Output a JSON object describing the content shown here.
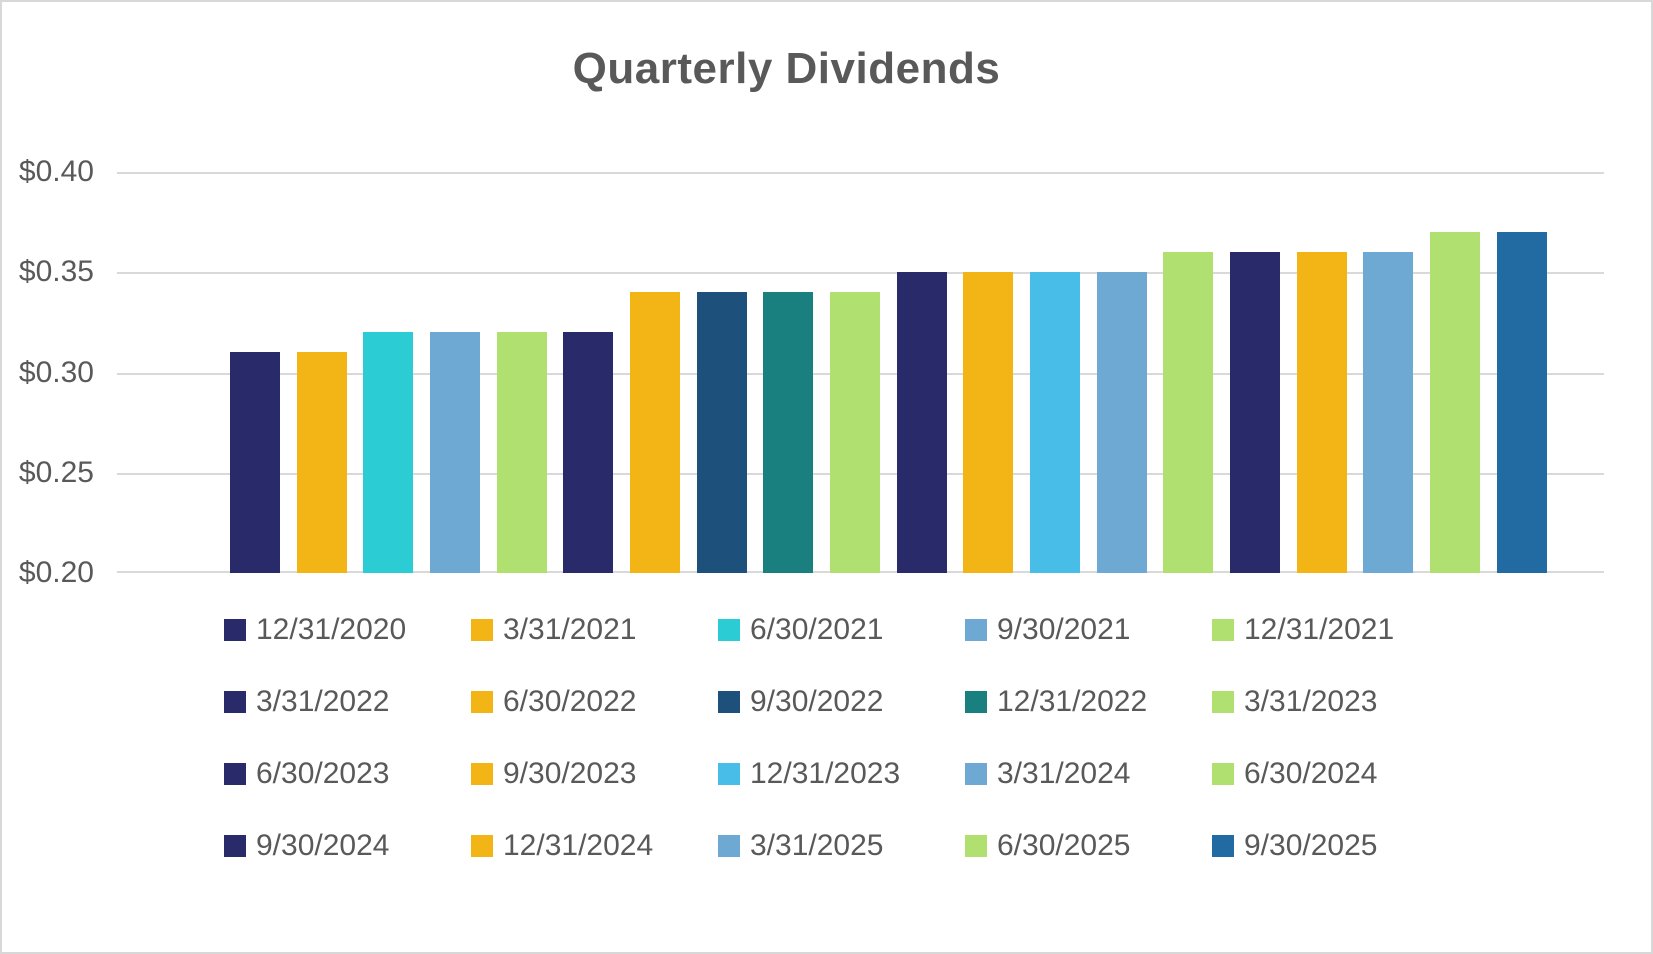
{
  "chart_data": {
    "type": "bar",
    "title": "Quarterly Dividends",
    "xlabel": "",
    "ylabel": "",
    "ylim": [
      0.2,
      0.4
    ],
    "yticks": [
      0.4,
      0.35,
      0.3,
      0.25,
      0.2
    ],
    "ytick_labels": [
      "$0.40",
      "$0.35",
      "$0.30",
      "$0.25",
      "$0.20"
    ],
    "grid": true,
    "legend_position": "bottom",
    "legend_layout": {
      "rows": 4,
      "cols": 5
    },
    "note": "each quarter-end date is its own series with a single bar",
    "series": [
      {
        "name": "12/31/2020",
        "value": 0.31,
        "color": "#282A69"
      },
      {
        "name": "3/31/2021",
        "value": 0.31,
        "color": "#F3B515"
      },
      {
        "name": "6/30/2021",
        "value": 0.32,
        "color": "#2CCCD4"
      },
      {
        "name": "9/30/2021",
        "value": 0.32,
        "color": "#6EA9D4"
      },
      {
        "name": "12/31/2021",
        "value": 0.32,
        "color": "#B0E070"
      },
      {
        "name": "3/31/2022",
        "value": 0.32,
        "color": "#282A69"
      },
      {
        "name": "6/30/2022",
        "value": 0.34,
        "color": "#F3B515"
      },
      {
        "name": "9/30/2022",
        "value": 0.34,
        "color": "#1D507A"
      },
      {
        "name": "12/31/2022",
        "value": 0.34,
        "color": "#1A807F"
      },
      {
        "name": "3/31/2023",
        "value": 0.34,
        "color": "#B0E070"
      },
      {
        "name": "6/30/2023",
        "value": 0.35,
        "color": "#282A69"
      },
      {
        "name": "9/30/2023",
        "value": 0.35,
        "color": "#F3B515"
      },
      {
        "name": "12/31/2023",
        "value": 0.35,
        "color": "#47BDE8"
      },
      {
        "name": "3/31/2024",
        "value": 0.35,
        "color": "#6EA9D4"
      },
      {
        "name": "6/30/2024",
        "value": 0.36,
        "color": "#B0E070"
      },
      {
        "name": "9/30/2024",
        "value": 0.36,
        "color": "#282A69"
      },
      {
        "name": "12/31/2024",
        "value": 0.36,
        "color": "#F3B515"
      },
      {
        "name": "3/31/2025",
        "value": 0.36,
        "color": "#6EA9D4"
      },
      {
        "name": "6/30/2025",
        "value": 0.37,
        "color": "#B0E070"
      },
      {
        "name": "9/30/2025",
        "value": 0.37,
        "color": "#216BA2"
      }
    ],
    "colors": {
      "text": "#595959",
      "gridline": "#D9D9D9",
      "background": "#FFFFFF",
      "border": "#D8D8D8"
    }
  }
}
